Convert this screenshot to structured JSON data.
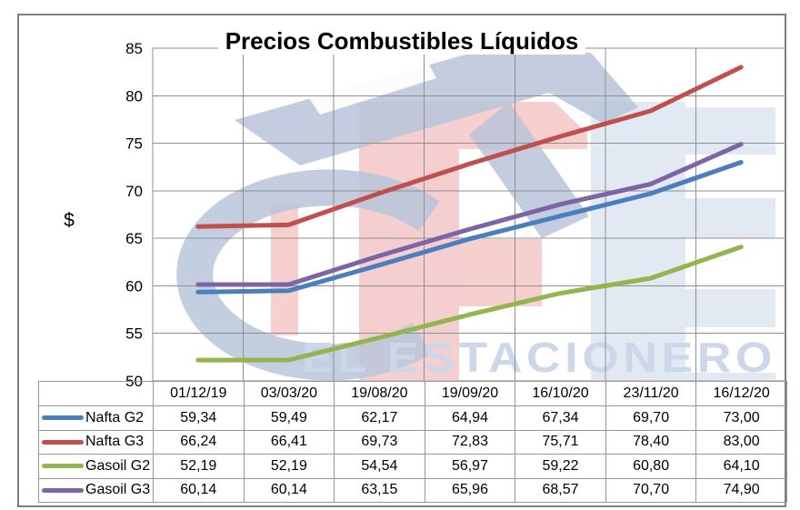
{
  "chart_data": {
    "type": "line",
    "title": "Precios Combustibles Líquidos",
    "ylabel": "$",
    "categories": [
      "01/12/19",
      "03/03/20",
      "19/08/20",
      "19/09/20",
      "16/10/20",
      "23/11/20",
      "16/12/20"
    ],
    "series": [
      {
        "name": "Nafta G2",
        "color": "#4A7EBD",
        "values": [
          59.34,
          59.49,
          62.17,
          64.94,
          67.34,
          69.7,
          73.0
        ],
        "values_formatted": [
          "59,34",
          "59,49",
          "62,17",
          "64,94",
          "67,34",
          "69,70",
          "73,00"
        ]
      },
      {
        "name": "Nafta G3",
        "color": "#C0504D",
        "values": [
          66.24,
          66.41,
          69.73,
          72.83,
          75.71,
          78.4,
          83.0
        ],
        "values_formatted": [
          "66,24",
          "66,41",
          "69,73",
          "72,83",
          "75,71",
          "78,40",
          "83,00"
        ]
      },
      {
        "name": "Gasoil G2",
        "color": "#94B44F",
        "values": [
          52.19,
          52.19,
          54.54,
          56.97,
          59.22,
          60.8,
          64.1
        ],
        "values_formatted": [
          "52,19",
          "52,19",
          "54,54",
          "56,97",
          "59,22",
          "60,80",
          "64,10"
        ]
      },
      {
        "name": "Gasoil G3",
        "color": "#7C64A5",
        "values": [
          60.14,
          60.14,
          63.15,
          65.96,
          68.57,
          70.7,
          74.9
        ],
        "values_formatted": [
          "60,14",
          "60,14",
          "63,15",
          "65,96",
          "68,57",
          "70,70",
          "74,90"
        ]
      }
    ],
    "y_axis": {
      "min": 50,
      "max": 85,
      "step": 5,
      "ticks": [
        50,
        55,
        60,
        65,
        70,
        75,
        80,
        85
      ]
    },
    "grid": true,
    "legend_position": "left-of-data-table",
    "number_format": "decimal-comma"
  },
  "watermark": {
    "text": "EL ESTACIONERO",
    "logo_icon": "gas-pump-nozzle-icon",
    "nozzle_color": "#b9c5da",
    "letter_red_color": "#f5caca",
    "letter_blue_color": "#e2e8f3",
    "text_color": "#ccd8e9"
  },
  "frame": {
    "border_color": "#7f7f7f",
    "grid_color": "#8f8f8f",
    "table_border_color": "#969696",
    "text_color": "#000000"
  }
}
